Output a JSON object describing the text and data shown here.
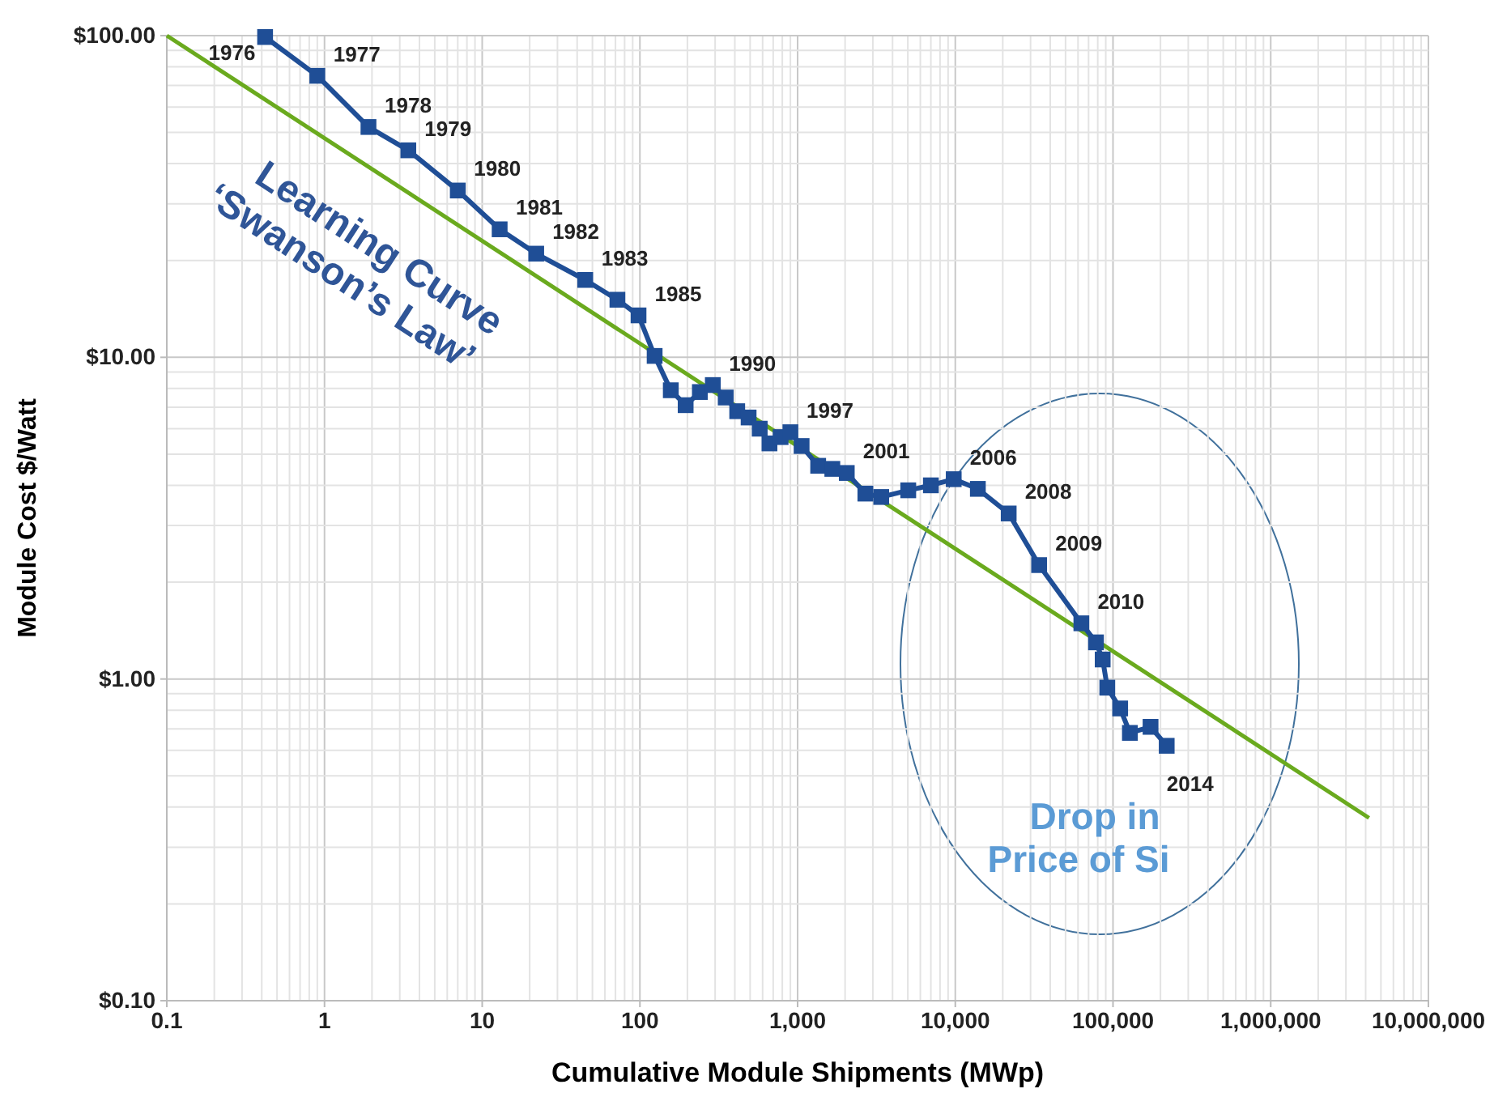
{
  "chart_data": {
    "type": "line",
    "xlabel": "Cumulative Module Shipments (MWp)",
    "ylabel": "Module Cost $/Watt",
    "log": "xy",
    "grid": true,
    "marker": "square",
    "line_style": "solid",
    "xlim": [
      0.1,
      10000000
    ],
    "ylim": [
      0.1,
      100
    ],
    "xticks": [
      0.1,
      1,
      {
        "value": 10,
        "label": "10"
      },
      {
        "value": 100,
        "label": "100"
      },
      {
        "value": 1000,
        "label": "1,000"
      },
      {
        "value": 10000,
        "label": "10,000"
      },
      {
        "value": 100000,
        "label": "100,000"
      },
      {
        "value": 1000000,
        "label": "1,000,000"
      },
      {
        "value": 10000000,
        "label": "10,000,000"
      }
    ],
    "yticks": [
      {
        "value": 0.1,
        "label": "$0.10"
      },
      {
        "value": 1,
        "label": "$1.00"
      },
      {
        "value": 10,
        "label": "$10.00"
      },
      {
        "value": 100,
        "label": "$100.00"
      }
    ],
    "series": [
      {
        "color": "#1f4e96",
        "x": [
          0.42,
          0.9,
          1.9,
          3.4,
          7,
          12.9,
          22,
          45,
          72,
          98,
          124,
          157,
          195,
          240,
          290,
          350,
          414,
          489,
          575,
          663,
          780,
          900,
          1060,
          1350,
          1660,
          2050,
          2690,
          3390,
          5030,
          7000,
          9770,
          13900,
          21800,
          34000,
          63000,
          78000,
          86000,
          92000,
          111000,
          128000,
          173000,
          219000
        ],
        "values": [
          99,
          75,
          52,
          44,
          33,
          25,
          21,
          17.4,
          15.1,
          13.5,
          10.1,
          7.9,
          7.1,
          7.8,
          8.2,
          7.5,
          6.8,
          6.5,
          6,
          5.4,
          5.65,
          5.85,
          5.3,
          4.6,
          4.5,
          4.37,
          3.77,
          3.68,
          3.86,
          4,
          4.18,
          3.9,
          3.27,
          2.26,
          1.49,
          1.3,
          1.15,
          0.94,
          0.81,
          0.68,
          0.71,
          0.62
        ]
      },
      {
        "color": "#6aaa1e",
        "marker": "none",
        "x": [
          0.1,
          4200000
        ],
        "values": [
          100,
          0.37
        ]
      }
    ],
    "annotations": [
      "Learning Curve\n‘Swanson’s Law’",
      "Drop in\nPrice of Si",
      {
        "text": "1976",
        "x": 0.42,
        "y": 99
      },
      {
        "text": "1977",
        "x": 0.9,
        "y": 75
      },
      {
        "text": "1978",
        "x": 1.9,
        "y": 52
      },
      {
        "text": "1979",
        "x": 3.4,
        "y": 44
      },
      {
        "text": "1980",
        "x": 7,
        "y": 33
      },
      {
        "text": "1981",
        "x": 12.9,
        "y": 25
      },
      {
        "text": "1982",
        "x": 22,
        "y": 21
      },
      {
        "text": "1983",
        "x": 45,
        "y": 17.4
      },
      {
        "text": "1985",
        "x": 98,
        "y": 13.5
      },
      {
        "text": "1990",
        "x": 290,
        "y": 8.2
      },
      {
        "text": "1997",
        "x": 900,
        "y": 5.85
      },
      {
        "text": "2001",
        "x": 2050,
        "y": 4.37
      },
      {
        "text": "2006",
        "x": 9770,
        "y": 4.18
      },
      {
        "text": "2008",
        "x": 21800,
        "y": 3.27
      },
      {
        "text": "2009",
        "x": 34000,
        "y": 2.26
      },
      {
        "text": "2010",
        "x": 63000,
        "y": 1.49
      },
      {
        "text": "2014",
        "x": 219000,
        "y": 0.62
      }
    ]
  }
}
